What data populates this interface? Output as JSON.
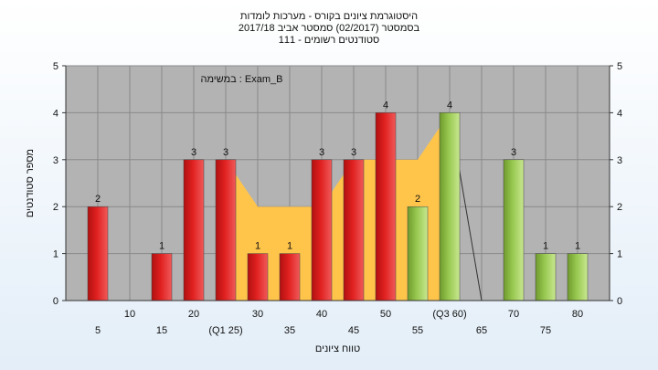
{
  "title_lines": [
    "היסטוגרמת ציונים בקורס - מערכות לומדות",
    "בסמסטר  (02/2017)  סמסטר אביב 2017/18",
    "סטודנטים רשומים - 111"
  ],
  "colors": {
    "plot_bg": "#b3b3b3",
    "grid": "#8a8a8a",
    "bar_red": "#e02020",
    "bar_green": "#98c850",
    "area": "#ffc44a",
    "line": "#333333"
  },
  "chart_data": {
    "type": "bar",
    "annotation": "במשימה : Exam_B",
    "xlabel": "טווח ציונים",
    "ylabel": "מספר סטודנטים",
    "ylim": [
      0,
      5
    ],
    "yticks": [
      0,
      1,
      2,
      3,
      4,
      5
    ],
    "grid": true,
    "categories": [
      5,
      10,
      15,
      20,
      25,
      30,
      35,
      40,
      45,
      50,
      55,
      60,
      65,
      70,
      75,
      80
    ],
    "tick_labels": [
      "5",
      "10",
      "15",
      "20",
      "(Q1 25)",
      "30",
      "35",
      "40",
      "45",
      "50",
      "55",
      "(Q3 60)",
      "65",
      "70",
      "75",
      "80"
    ],
    "values": [
      2,
      0,
      1,
      3,
      3,
      1,
      1,
      3,
      3,
      4,
      2,
      4,
      0,
      3,
      1,
      1
    ],
    "bar_colors": [
      "red",
      "red",
      "red",
      "red",
      "red",
      "red",
      "red",
      "red",
      "red",
      "red",
      "green",
      "green",
      "green",
      "green",
      "green",
      "green"
    ],
    "data_labels": [
      "2",
      "",
      "1",
      "3",
      "3",
      "1",
      "1",
      "3",
      "3",
      "4",
      "2",
      "4",
      "",
      "3",
      "1",
      "1"
    ],
    "quartile_area": {
      "x": [
        25,
        30,
        35,
        40,
        45,
        50,
        55,
        60
      ],
      "values": [
        3,
        2,
        2,
        2,
        3,
        3,
        3,
        4
      ]
    },
    "median_line": {
      "x": [
        60,
        65
      ],
      "values": [
        4,
        0
      ]
    }
  }
}
